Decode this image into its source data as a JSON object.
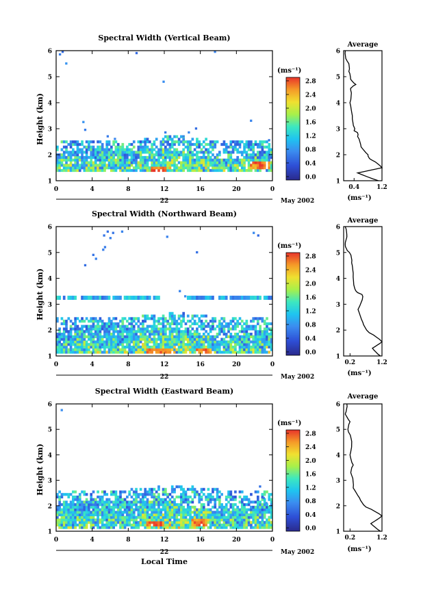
{
  "chart_data": [
    {
      "type": "heatmap",
      "title": "Spectral Width (Vertical Beam)",
      "ylabel": "Height (km)",
      "x_ticks": [
        "0",
        "4",
        "8",
        "12",
        "16",
        "20",
        "0"
      ],
      "y_ticks": [
        "1",
        "2",
        "3",
        "4",
        "5",
        "6"
      ],
      "xlim": [
        0,
        24
      ],
      "ylim": [
        1,
        6
      ],
      "date_marker": "22",
      "date_label": "May 2002",
      "colorbar_unit": "(ms⁻¹)",
      "colorbar_ticks": [
        "0.0",
        "0.4",
        "0.8",
        "1.2",
        "1.6",
        "2.0",
        "2.4",
        "2.8"
      ],
      "colorbar_range": [
        0,
        3.0
      ],
      "band": {
        "bottom": 1.35,
        "dense_top": 2.0,
        "sparse_top": 2.5,
        "hot_x": [
          10.5,
          12.0
        ],
        "hot_y": 1.4,
        "hot2_x": [
          21.5,
          23.5
        ],
        "hot2_y": 1.55
      },
      "scattered_points": [
        [
          0.3,
          5.85
        ],
        [
          0.6,
          5.95
        ],
        [
          1.0,
          5.5
        ],
        [
          8.8,
          5.9
        ],
        [
          11.8,
          4.8
        ],
        [
          17.5,
          5.95
        ],
        [
          2.9,
          3.25
        ],
        [
          3.1,
          2.95
        ],
        [
          5.6,
          2.7
        ],
        [
          6.4,
          2.6
        ],
        [
          12.0,
          2.85
        ],
        [
          14.0,
          2.7
        ],
        [
          14.6,
          2.85
        ],
        [
          15.4,
          3.0
        ],
        [
          21.5,
          3.3
        ],
        [
          23.5,
          2.55
        ]
      ],
      "average_profile": {
        "title": "Average",
        "xlabel": "(ms⁻¹)",
        "x_ticks": [
          "0.4",
          "1.2"
        ],
        "x_tick_values": [
          0.4,
          1.2
        ],
        "xlim": [
          0.1,
          1.2
        ],
        "y_ticks": [
          "1",
          "2",
          "3",
          "4",
          "5",
          "6"
        ],
        "points": [
          [
            1.1,
            1.0
          ],
          [
            0.5,
            1.3
          ],
          [
            1.2,
            1.5
          ],
          [
            0.9,
            1.8
          ],
          [
            0.8,
            2.0
          ],
          [
            0.6,
            2.3
          ],
          [
            0.5,
            2.7
          ],
          [
            0.42,
            3.0
          ],
          [
            0.35,
            3.5
          ],
          [
            0.28,
            4.0
          ],
          [
            0.3,
            4.5
          ],
          [
            0.45,
            4.7
          ],
          [
            0.3,
            4.9
          ],
          [
            0.25,
            5.2
          ],
          [
            0.2,
            5.6
          ],
          [
            0.15,
            6.0
          ]
        ]
      }
    },
    {
      "type": "heatmap",
      "title": "Spectral Width (Northward Beam)",
      "ylabel": "Height (km)",
      "x_ticks": [
        "0",
        "4",
        "8",
        "12",
        "16",
        "20",
        "0"
      ],
      "y_ticks": [
        "1",
        "2",
        "3",
        "4",
        "5",
        "6"
      ],
      "xlim": [
        0,
        24
      ],
      "ylim": [
        1,
        6
      ],
      "date_marker": "22",
      "date_label": "May 2002",
      "colorbar_unit": "(ms⁻¹)",
      "colorbar_ticks": [
        "0.0",
        "0.4",
        "0.8",
        "1.2",
        "1.6",
        "2.0",
        "2.4",
        "2.8"
      ],
      "colorbar_range": [
        0,
        3.0
      ],
      "band": {
        "bottom": 1.1,
        "dense_top": 1.9,
        "sparse_top": 2.45,
        "hot_x": [
          10.0,
          12.5
        ],
        "hot_y": 1.15,
        "hot2_x": [
          15.5,
          17.0
        ],
        "hot2_y": 1.15,
        "extra_row_y": 3.25
      },
      "scattered_points": [
        [
          5.2,
          5.65
        ],
        [
          5.6,
          5.8
        ],
        [
          5.9,
          5.55
        ],
        [
          6.2,
          5.75
        ],
        [
          7.2,
          5.8
        ],
        [
          5.1,
          5.1
        ],
        [
          5.3,
          5.2
        ],
        [
          4.0,
          4.9
        ],
        [
          4.3,
          4.75
        ],
        [
          3.1,
          4.5
        ],
        [
          12.2,
          5.6
        ],
        [
          15.5,
          5.0
        ],
        [
          21.8,
          5.75
        ],
        [
          22.3,
          5.65
        ],
        [
          13.6,
          3.5
        ],
        [
          14.2,
          3.3
        ]
      ],
      "average_profile": {
        "title": "Average",
        "xlabel": "(ms⁻¹)",
        "x_ticks": [
          "0.2",
          "1.2"
        ],
        "x_tick_values": [
          0.2,
          1.2
        ],
        "xlim": [
          0.0,
          1.2
        ],
        "y_ticks": [
          "1",
          "2",
          "3",
          "4",
          "5",
          "6"
        ],
        "points": [
          [
            1.15,
            1.0
          ],
          [
            0.9,
            1.3
          ],
          [
            1.2,
            1.55
          ],
          [
            0.8,
            1.9
          ],
          [
            0.6,
            2.3
          ],
          [
            0.45,
            2.8
          ],
          [
            0.6,
            3.3
          ],
          [
            0.35,
            3.6
          ],
          [
            0.3,
            4.2
          ],
          [
            0.25,
            4.6
          ],
          [
            0.18,
            5.0
          ],
          [
            0.05,
            5.3
          ],
          [
            0.1,
            5.6
          ],
          [
            0.05,
            6.0
          ]
        ]
      }
    },
    {
      "type": "heatmap",
      "title": "Spectral Width (Eastward Beam)",
      "ylabel": "Height (km)",
      "xlabel": "Local Time",
      "x_ticks": [
        "0",
        "4",
        "8",
        "12",
        "16",
        "20",
        "0"
      ],
      "y_ticks": [
        "1",
        "2",
        "3",
        "4",
        "5",
        "6"
      ],
      "xlim": [
        0,
        24
      ],
      "ylim": [
        1,
        6
      ],
      "date_marker": "22",
      "date_label": "May 2002",
      "colorbar_unit": "(ms⁻¹)",
      "colorbar_ticks": [
        "0.0",
        "0.4",
        "0.8",
        "1.2",
        "1.6",
        "2.0",
        "2.4",
        "2.8"
      ],
      "colorbar_range": [
        0,
        3.0
      ],
      "band": {
        "bottom": 1.1,
        "dense_top": 1.95,
        "sparse_top": 2.6,
        "hot_x": [
          10.0,
          11.8
        ],
        "hot_y": 1.25,
        "hot2_x": [
          15.0,
          16.5
        ],
        "hot2_y": 1.3
      },
      "scattered_points": [
        [
          0.5,
          5.75
        ],
        [
          22.5,
          2.75
        ],
        [
          23.2,
          2.1
        ],
        [
          22.9,
          2.3
        ]
      ],
      "average_profile": {
        "title": "Average",
        "xlabel": "(ms⁻¹)",
        "x_ticks": [
          "0.2",
          "1.2"
        ],
        "x_tick_values": [
          0.2,
          1.2
        ],
        "xlim": [
          0.0,
          1.2
        ],
        "y_ticks": [
          "1",
          "2",
          "3",
          "4",
          "5",
          "6"
        ],
        "points": [
          [
            1.15,
            1.0
          ],
          [
            0.85,
            1.3
          ],
          [
            1.2,
            1.6
          ],
          [
            0.7,
            1.95
          ],
          [
            0.5,
            2.3
          ],
          [
            0.3,
            2.7
          ],
          [
            0.25,
            3.2
          ],
          [
            0.3,
            3.6
          ],
          [
            0.2,
            4.0
          ],
          [
            0.25,
            4.4
          ],
          [
            0.15,
            4.9
          ],
          [
            0.2,
            5.3
          ],
          [
            0.05,
            5.6
          ],
          [
            0.1,
            6.0
          ]
        ]
      }
    }
  ]
}
